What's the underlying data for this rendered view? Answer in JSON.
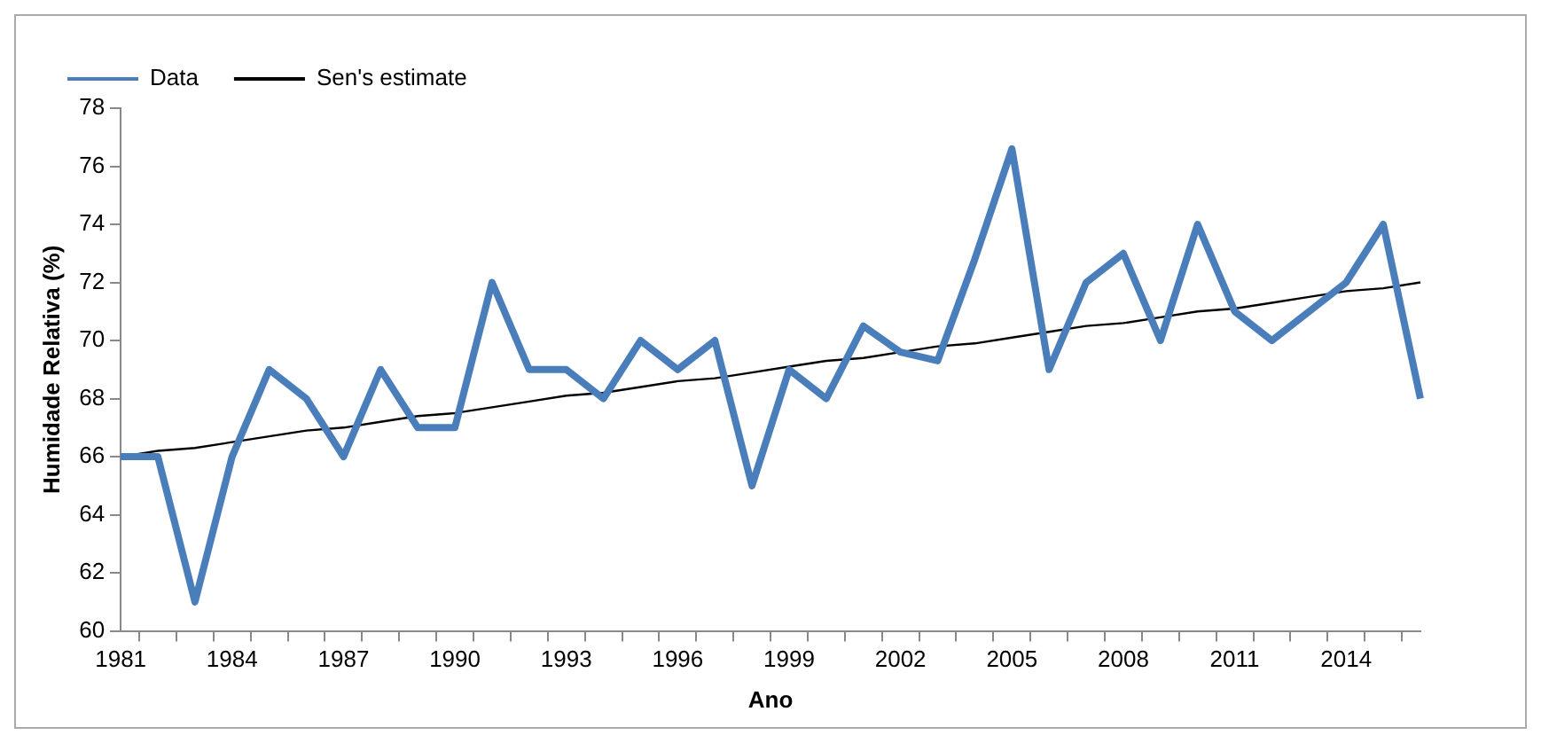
{
  "chart_data": {
    "type": "line",
    "xlabel": "Ano",
    "ylabel": "Humidade Relativa (%)",
    "categories": [
      "1981",
      null,
      null,
      "1984",
      null,
      null,
      "1987",
      null,
      null,
      "1990",
      null,
      null,
      "1993",
      null,
      null,
      "1996",
      null,
      null,
      "1999",
      null,
      null,
      "2002",
      null,
      null,
      "2005",
      null,
      null,
      "2008",
      null,
      null,
      "2011",
      null,
      null,
      "2014",
      null,
      null
    ],
    "series": [
      {
        "name": "Data",
        "color": "#4a7ebb",
        "values": [
          66,
          66,
          61,
          66,
          69,
          68,
          66,
          69,
          67,
          67,
          72,
          69,
          69,
          68,
          70,
          69,
          70,
          65,
          69,
          68,
          70.5,
          69.6,
          69.3,
          72.8,
          76.6,
          69,
          72,
          73,
          70,
          74,
          71,
          70,
          71,
          72,
          74,
          68
        ]
      },
      {
        "name": "Sen's estimate",
        "color": "#000000",
        "values": [
          66.0,
          66.2,
          66.3,
          66.5,
          66.7,
          66.9,
          67.0,
          67.2,
          67.4,
          67.5,
          67.7,
          67.9,
          68.1,
          68.2,
          68.4,
          68.6,
          68.7,
          68.9,
          69.1,
          69.3,
          69.4,
          69.6,
          69.8,
          69.9,
          70.1,
          70.3,
          70.5,
          70.6,
          70.8,
          71.0,
          71.1,
          71.3,
          71.5,
          71.7,
          71.8,
          72.0
        ]
      }
    ],
    "ylim": [
      60,
      78
    ],
    "yticks": [
      60,
      62,
      64,
      66,
      68,
      70,
      72,
      74,
      76,
      78
    ],
    "grid": false,
    "legend": "top",
    "marker": "none"
  }
}
